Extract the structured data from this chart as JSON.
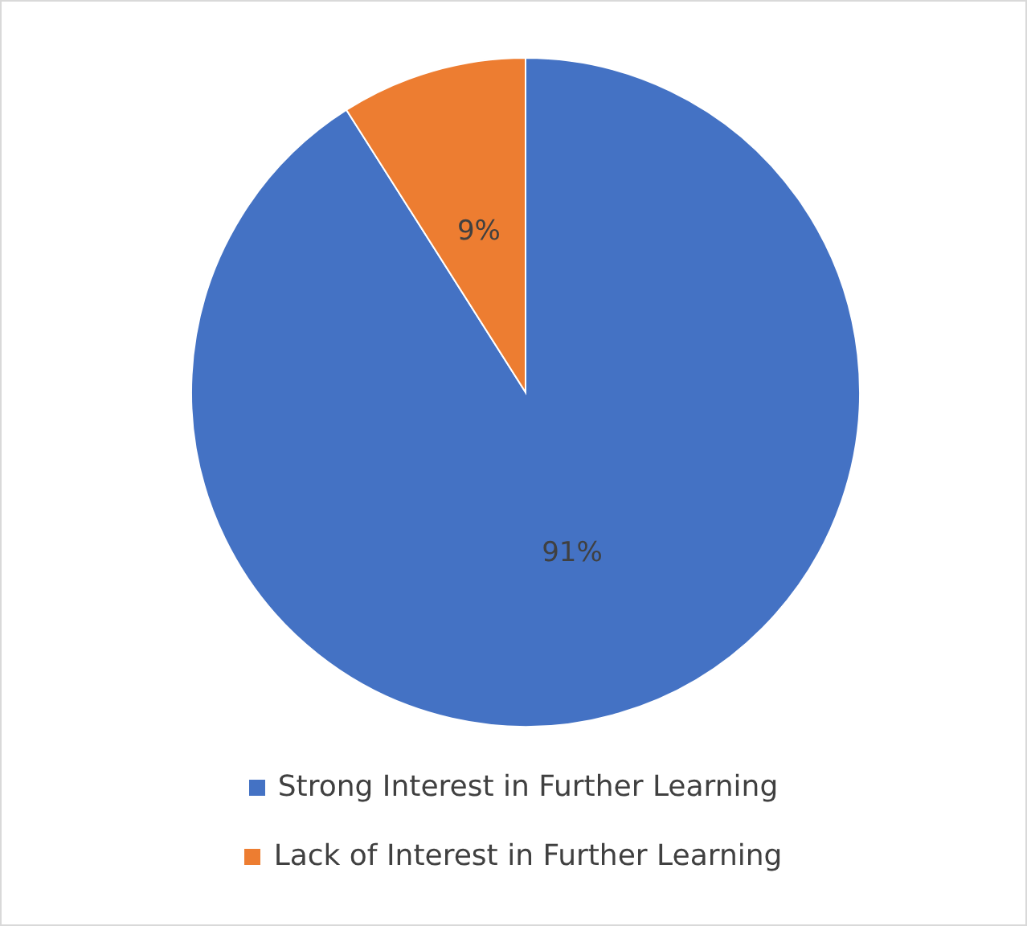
{
  "chart_data": {
    "type": "pie",
    "categories": [
      "Strong Interest in Further Learning",
      "Lack of Interest in Further Learning"
    ],
    "values": [
      91,
      9
    ],
    "colors": [
      "#4472c4",
      "#ed7d31"
    ],
    "value_labels": [
      "91%",
      "9%"
    ],
    "legend": "bottom"
  }
}
